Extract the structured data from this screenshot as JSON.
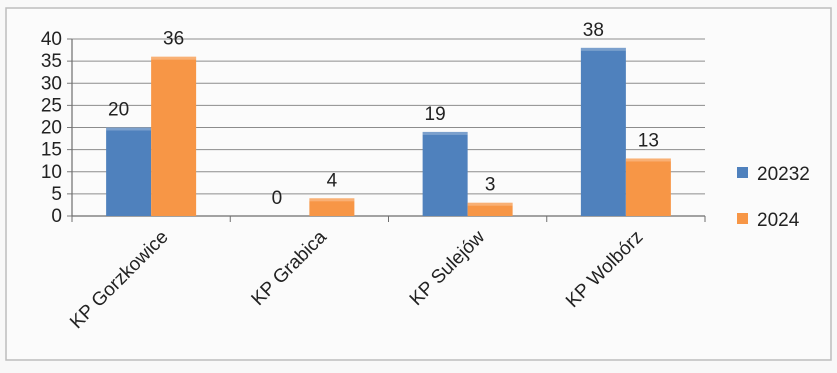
{
  "chart_data": {
    "type": "bar",
    "categories": [
      "KP Gorzkowice",
      "KP Grabica",
      "KP Sulejów",
      "KP Wolbórz"
    ],
    "series": [
      {
        "name": "20232",
        "values": [
          20,
          0,
          19,
          38
        ],
        "data_labels": [
          "20",
          "0",
          "19",
          "38"
        ],
        "color": "#4f81bd"
      },
      {
        "name": "2024",
        "values": [
          36,
          4,
          3,
          13
        ],
        "data_labels": [
          "36",
          "4",
          "3",
          "13"
        ],
        "color": "#f79646"
      }
    ],
    "ylim": [
      0,
      40
    ],
    "yticks": [
      "0",
      "5",
      "10",
      "15",
      "20",
      "25",
      "30",
      "35",
      "40"
    ],
    "grid": true,
    "legend_position": "right"
  }
}
